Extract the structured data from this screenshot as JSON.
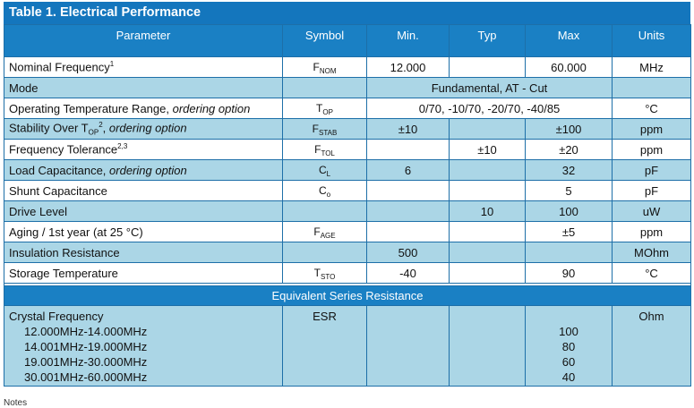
{
  "table": {
    "title": "Table 1. Electrical Performance",
    "headers": [
      "Parameter",
      "Symbol",
      "Min.",
      "Typ",
      "Max",
      "Units"
    ],
    "rows": [
      {
        "param": "Nominal Frequency",
        "param_sup": "1",
        "symbol": "F",
        "symbol_sub": "NOM",
        "min": "12.000",
        "typ": "",
        "max": "60.000",
        "units": "MHz"
      },
      {
        "param": "Mode",
        "merged": "Fundamental, AT - Cut"
      },
      {
        "param": "Operating Temperature Range, ",
        "param_italic": "ordering option",
        "symbol": "T",
        "symbol_sub": "OP",
        "merged": "0/70, -10/70, -20/70, -40/85",
        "units": "°C"
      },
      {
        "param": "Stability Over T",
        "param_sub": "OP",
        "param_sup": "2",
        "param_after": ", ",
        "param_italic": "ordering option",
        "symbol": "F",
        "symbol_sub": "STAB",
        "min": "±10",
        "typ": "",
        "max": "±100",
        "units": "ppm"
      },
      {
        "param": "Frequency Tolerance",
        "param_sup": "2,3",
        "symbol": "F",
        "symbol_sub": "TOL",
        "min": "",
        "typ": "±10",
        "max": "±20",
        "units": "ppm"
      },
      {
        "param": "Load Capacitance, ",
        "param_italic": "ordering option",
        "symbol": "C",
        "symbol_sub": "L",
        "min": "6",
        "typ": "",
        "max": "32",
        "units": "pF"
      },
      {
        "param": "Shunt Capacitance",
        "symbol": "C",
        "symbol_sub": "o",
        "min": "",
        "typ": "",
        "max": "5",
        "units": "pF"
      },
      {
        "param": "Drive Level",
        "symbol": "",
        "min": "",
        "typ": "10",
        "max": "100",
        "units": "uW"
      },
      {
        "param": "Aging / 1st year (at 25 °C)",
        "symbol": "F",
        "symbol_sub": "AGE",
        "min": "",
        "typ": "",
        "max": "±5",
        "units": "ppm"
      },
      {
        "param": "Insulation Resistance",
        "symbol": "",
        "min": "500",
        "typ": "",
        "max": "",
        "units": "MOhm"
      },
      {
        "param": "Storage Temperature",
        "symbol": "T",
        "symbol_sub": "STO",
        "min": "-40",
        "typ": "",
        "max": "90",
        "units": "°C"
      }
    ],
    "esr": {
      "title": "Equivalent Series Resistance",
      "param": "Crystal Frequency",
      "symbol": "ESR",
      "units": "Ohm",
      "ranges": [
        "12.000MHz-14.000MHz",
        "14.001MHz-19.000MHz",
        "19.001MHz-30.000MHz",
        "30.001MHz-60.000MHz"
      ],
      "max_values": [
        "100",
        "80",
        "60",
        "40"
      ]
    },
    "notes_label": "Notes"
  }
}
